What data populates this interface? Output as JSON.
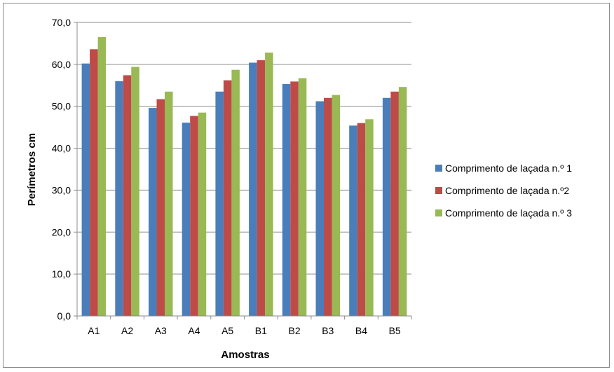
{
  "chart_data": {
    "type": "bar",
    "title": "",
    "xlabel": "Amostras",
    "ylabel": "Perímetros cm",
    "ylim": [
      0,
      70
    ],
    "ytick_step": 10,
    "ytick_labels": [
      "0,0",
      "10,0",
      "20,0",
      "30,0",
      "40,0",
      "50,0",
      "60,0",
      "70,0"
    ],
    "grid": true,
    "legend_position": "right",
    "categories": [
      "A1",
      "A2",
      "A3",
      "A4",
      "A5",
      "B1",
      "B2",
      "B3",
      "B4",
      "B5"
    ],
    "series": [
      {
        "name": "Comprimento de laçada n.º 1",
        "color": "#4a7ebb",
        "values": [
          60.2,
          56.0,
          49.6,
          46.1,
          53.5,
          60.4,
          55.3,
          51.2,
          45.4,
          52.0
        ]
      },
      {
        "name": "Comprimento de laçada n.º2",
        "color": "#be4b48",
        "values": [
          63.6,
          57.4,
          51.7,
          47.7,
          56.2,
          61.0,
          55.9,
          52.0,
          46.0,
          53.5
        ]
      },
      {
        "name": "Comprimento de laçada n.º 3",
        "color": "#98b954",
        "values": [
          66.5,
          59.4,
          53.5,
          48.5,
          58.7,
          62.8,
          56.7,
          52.7,
          46.9,
          54.6
        ]
      }
    ]
  }
}
